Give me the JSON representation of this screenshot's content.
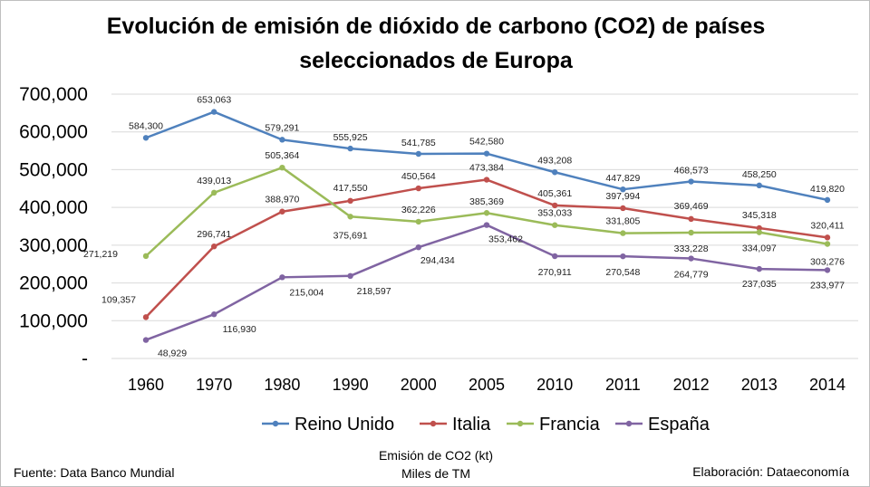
{
  "chart_data": {
    "type": "line",
    "title": "Evolución de emisión de dióxido de carbono (CO2) de  países seleccionados de Europa",
    "title_lines": [
      "Evolución de emisión de dióxido de carbono (CO2) de  países",
      "seleccionados de Europa"
    ],
    "x": [
      "1960",
      "1970",
      "1980",
      "1990",
      "2000",
      "2005",
      "2010",
      "2011",
      "2012",
      "2013",
      "2014"
    ],
    "ylim": [
      0,
      700000
    ],
    "yticks": [
      0,
      100000,
      200000,
      300000,
      400000,
      500000,
      600000,
      700000
    ],
    "ytick_labels": [
      "-",
      "100,000",
      "200,000",
      "300,000",
      "400,000",
      "500,000",
      "600,000",
      "700,000"
    ],
    "grid": true,
    "legend_position": "bottom",
    "series": [
      {
        "name": "Reino Unido",
        "color": "#4F81BD",
        "values": [
          584300,
          653063,
          579291,
          555925,
          541785,
          542580,
          493208,
          447829,
          468573,
          458250,
          419820
        ],
        "labels": [
          "584,300",
          "653,063",
          "579,291",
          "555,925",
          "541,785",
          "542,580",
          "493,208",
          "447,829",
          "468,573",
          "458,250",
          "419,820"
        ]
      },
      {
        "name": "Italia",
        "color": "#C0504D",
        "values": [
          109357,
          296741,
          388970,
          417550,
          450564,
          473384,
          405361,
          397994,
          369469,
          345318,
          320411
        ],
        "labels": [
          "109,357",
          "296,741",
          "388,970",
          "417,550",
          "450,564",
          "473,384",
          "405,361",
          "397,994",
          "369,469",
          "345,318",
          "320,411"
        ]
      },
      {
        "name": "Francia",
        "color": "#9BBB59",
        "values": [
          271219,
          439013,
          505364,
          375691,
          362226,
          385369,
          353033,
          331805,
          333228,
          334097,
          303276
        ],
        "labels": [
          "271,219",
          "439,013",
          "505,364",
          "375,691",
          "362,226",
          "385,369",
          "353,033",
          "331,805",
          "333,228",
          "334,097",
          "303,276"
        ]
      },
      {
        "name": "España",
        "color": "#8064A2",
        "values": [
          48929,
          116930,
          215004,
          218597,
          294434,
          353462,
          270911,
          270548,
          264779,
          237035,
          233977
        ],
        "labels": [
          "48,929",
          "116,930",
          "215,004",
          "218,597",
          "294,434",
          "353,462",
          "270,911",
          "270,548",
          "264,779",
          "237,035",
          "233,977"
        ]
      }
    ]
  },
  "footer": {
    "source": "Fuente: Data Banco Mundial",
    "unit_line1": "Emisión de CO2 (kt)",
    "unit_line2": "Miles de TM",
    "credit": "Elaboración: Dataeconomía"
  }
}
